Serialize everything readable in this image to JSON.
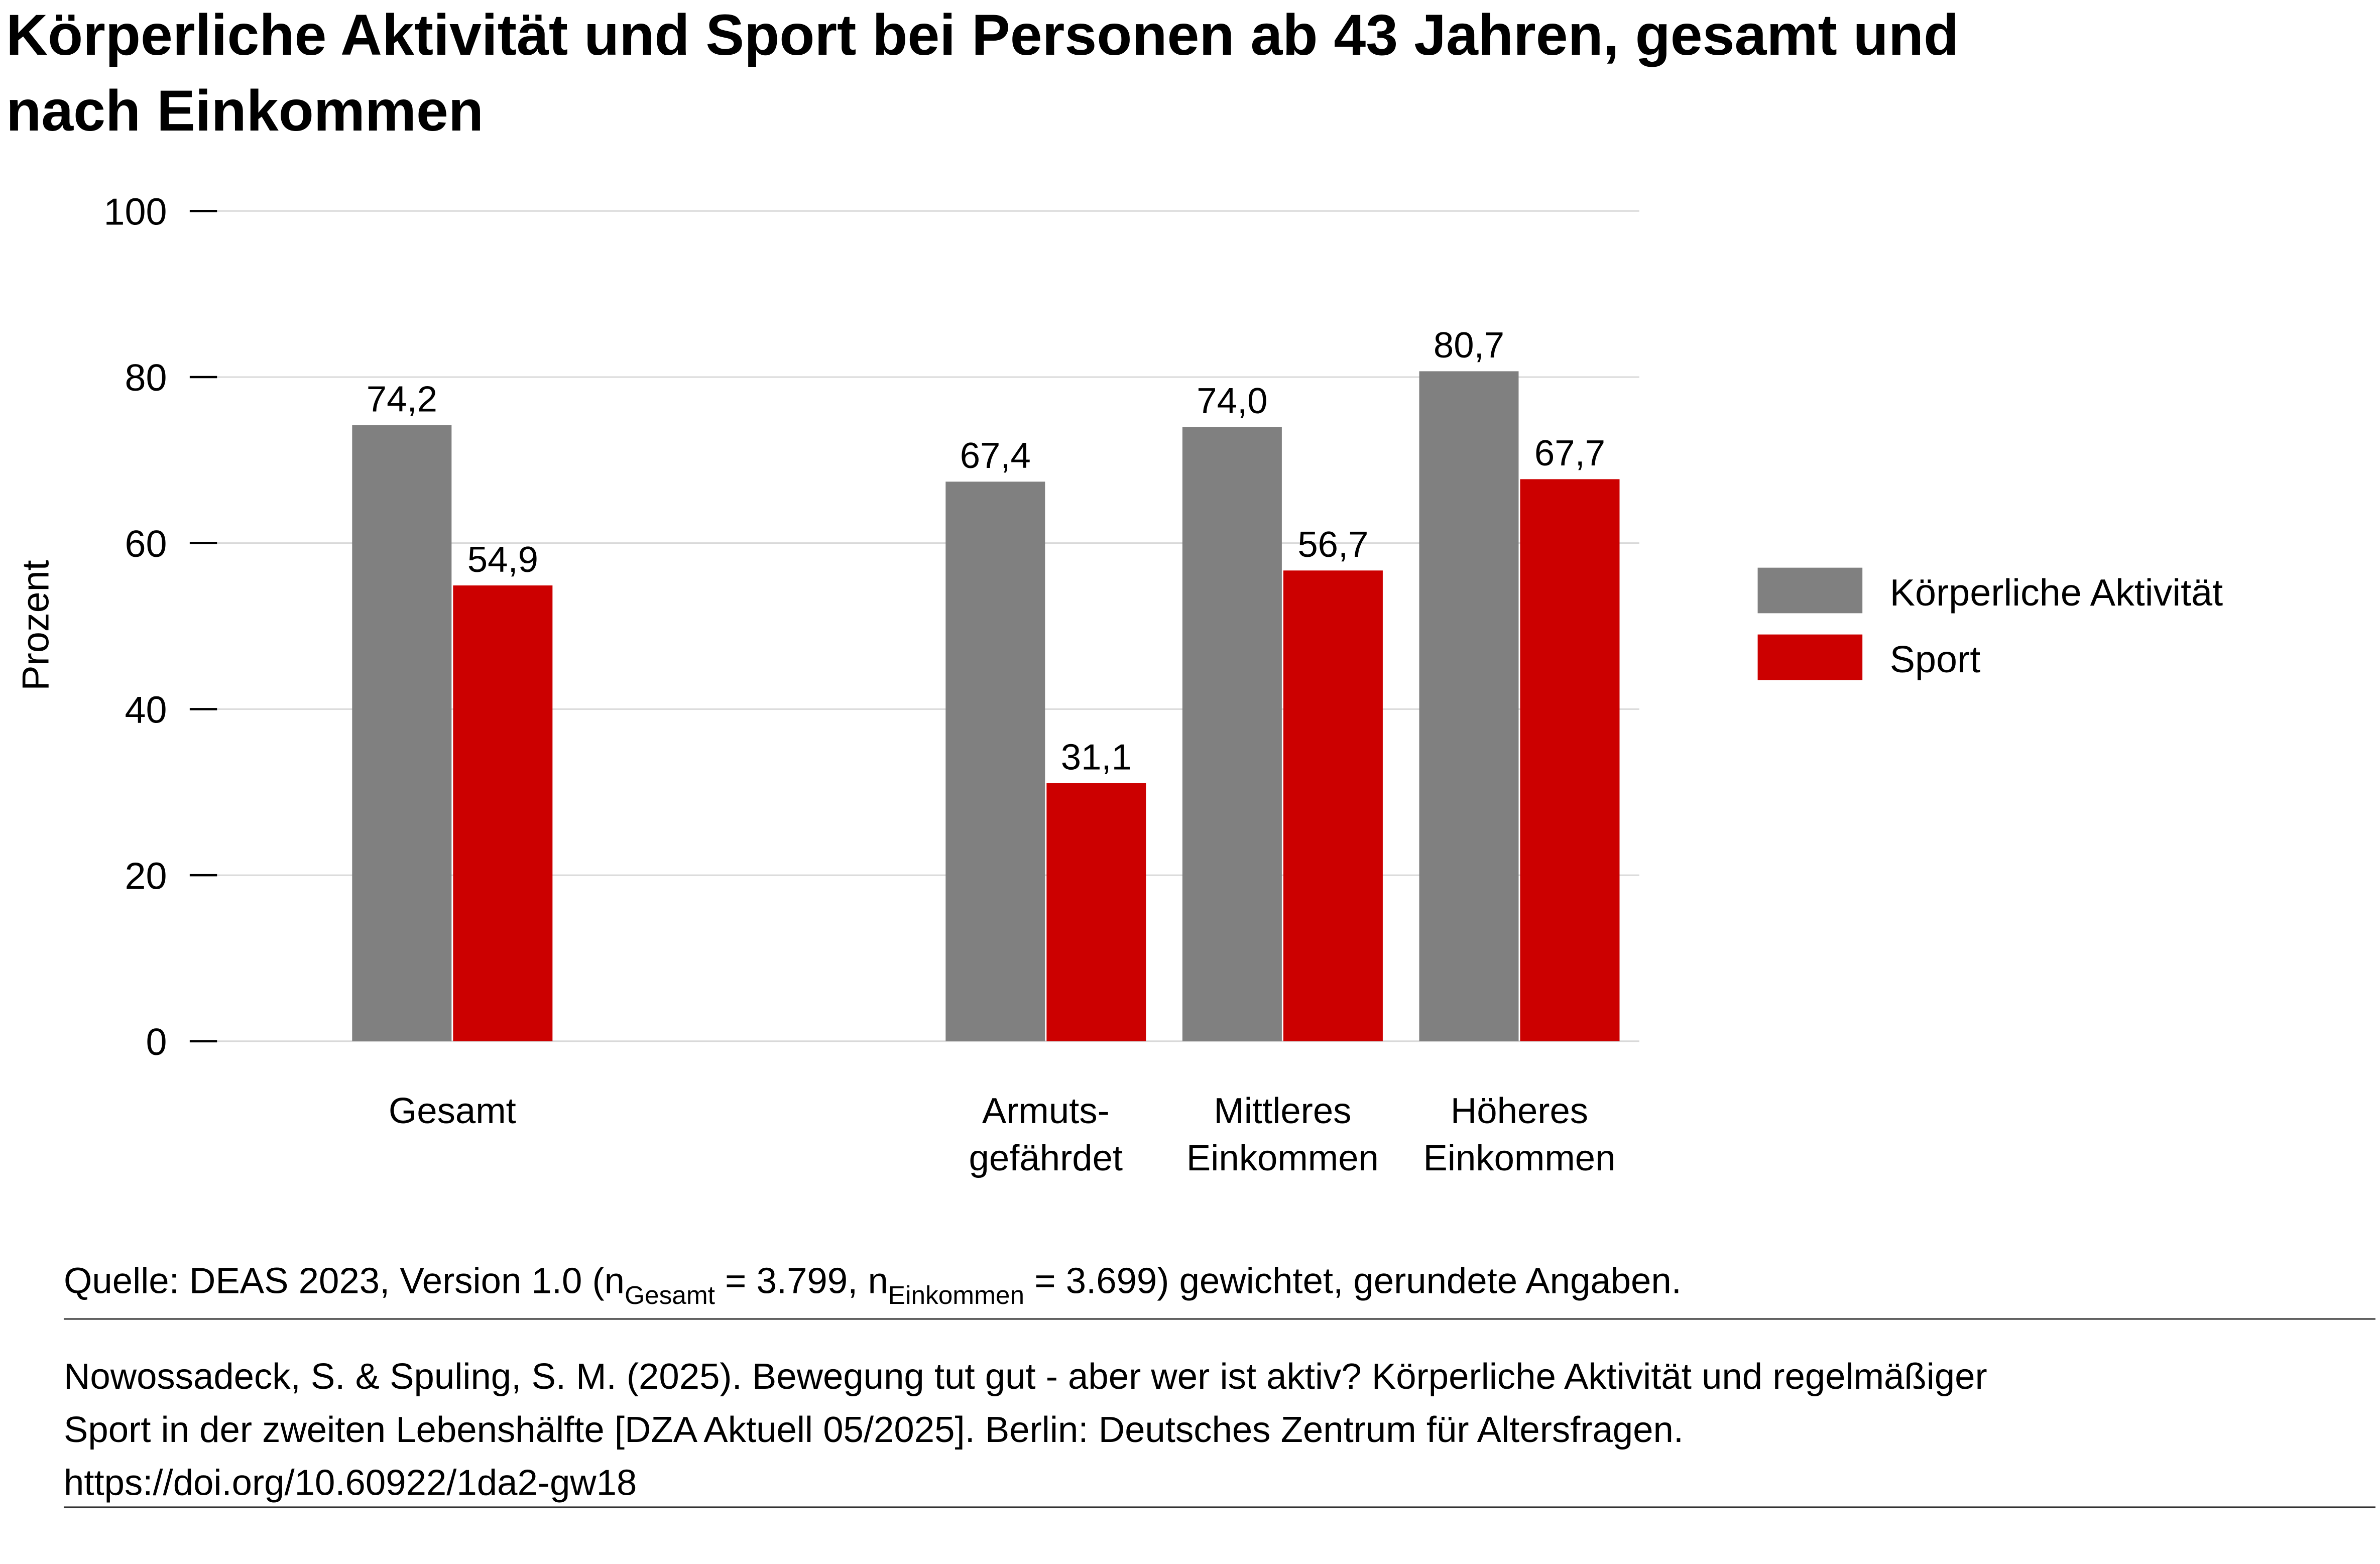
{
  "title_lines": [
    "Körperliche Aktivität und Sport bei Personen ab 43 Jahren, gesamt und",
    "nach Einkommen"
  ],
  "chart_data": {
    "type": "bar",
    "title": "Körperliche Aktivität und Sport bei Personen ab 43 Jahren, gesamt und nach Einkommen",
    "ylabel": "Prozent",
    "xlabel": "",
    "ylim": [
      0,
      100
    ],
    "yticks": [
      0,
      20,
      40,
      60,
      80,
      100
    ],
    "grid": true,
    "legend_position": "right",
    "categories": [
      {
        "lines": [
          "Gesamt"
        ]
      },
      {
        "lines": [
          "Armuts-",
          "gefährdet"
        ]
      },
      {
        "lines": [
          "Mittleres",
          "Einkommen"
        ]
      },
      {
        "lines": [
          "Höheres",
          "Einkommen"
        ]
      }
    ],
    "series": [
      {
        "name": "Körperliche Aktivität",
        "color": "#808080",
        "values": [
          74.2,
          67.4,
          74.0,
          80.7
        ],
        "labels": [
          "74,2",
          "67,4",
          "74,0",
          "80,7"
        ]
      },
      {
        "name": "Sport",
        "color": "#cc0000",
        "values": [
          54.9,
          31.1,
          56.7,
          67.7
        ],
        "labels": [
          "54,9",
          "31,1",
          "56,7",
          "67,7"
        ]
      }
    ]
  },
  "source": {
    "prefix": "Quelle: DEAS 2023, Version 1.0 (n",
    "sub1": "Gesamt",
    "mid": " = 3.799, n",
    "sub2": "Einkommen",
    "suffix": " = 3.699) gewichtet, gerundete Angaben."
  },
  "citation_lines": [
    "Nowossadeck, S. & Spuling, S. M. (2025). Bewegung tut gut - aber wer ist aktiv? Körperliche Aktivität und regelmäßiger",
    "Sport in der zweiten Lebenshälfte [DZA Aktuell 05/2025]. Berlin: Deutsches Zentrum für Altersfragen.",
    "https://doi.org/10.60922/1da2-gw18"
  ]
}
